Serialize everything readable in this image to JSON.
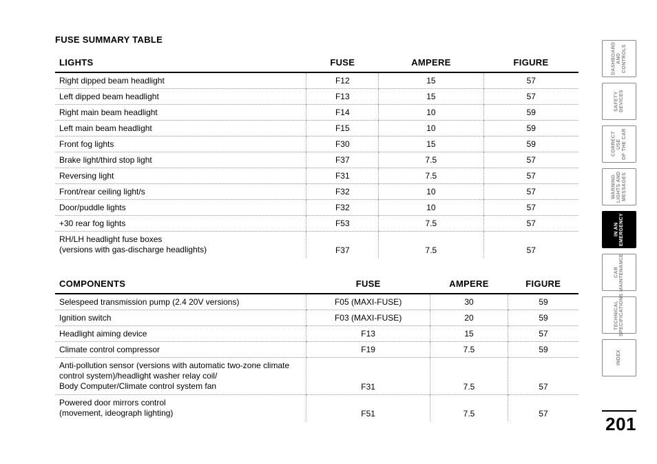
{
  "pageNumber": "201",
  "sectionTitle": "FUSE SUMMARY TABLE",
  "tables": [
    {
      "headers": [
        "LIGHTS",
        "FUSE",
        "AMPERE",
        "FIGURE"
      ],
      "rows": [
        [
          "Right dipped beam headlight",
          "F12",
          "15",
          "57"
        ],
        [
          "Left dipped beam headlight",
          "F13",
          "15",
          "57"
        ],
        [
          "Right main beam headlight",
          "F14",
          "10",
          "59"
        ],
        [
          "Left main beam headlight",
          "F15",
          "10",
          "59"
        ],
        [
          "Front fog lights",
          "F30",
          "15",
          "59"
        ],
        [
          "Brake light/third stop light",
          "F37",
          "7.5",
          "57"
        ],
        [
          "Reversing light",
          "F31",
          "7.5",
          "57"
        ],
        [
          "Front/rear ceiling light/s",
          "F32",
          "10",
          "57"
        ],
        [
          "Door/puddle lights",
          "F32",
          "10",
          "57"
        ],
        [
          "+30 rear fog lights",
          "F53",
          "7.5",
          "57"
        ],
        [
          "RH/LH headlight fuse boxes\n(versions with gas-discharge headlights)",
          "F37",
          "7.5",
          "57"
        ]
      ]
    },
    {
      "headers": [
        "COMPONENTS",
        "FUSE",
        "AMPERE",
        "FIGURE"
      ],
      "rows": [
        [
          "Selespeed transmission pump (2.4 20V versions)",
          "F05 (MAXI-FUSE)",
          "30",
          "59"
        ],
        [
          "Ignition switch",
          "F03 (MAXI-FUSE)",
          "20",
          "59"
        ],
        [
          "Headlight aiming device",
          "F13",
          "15",
          "57"
        ],
        [
          "Climate control compressor",
          "F19",
          "7.5",
          "59"
        ],
        [
          "Anti-pollution sensor (versions with automatic two-zone climate\ncontrol system)/headlight washer relay coil/\nBody Computer/Climate control system fan",
          "F31",
          "7.5",
          "57"
        ],
        [
          "Powered door mirrors control\n(movement, ideograph lighting)",
          "F51",
          "7.5",
          "57"
        ]
      ]
    }
  ],
  "tabs": [
    {
      "label": "DASHBOARD\nAND CONTROLS",
      "active": false
    },
    {
      "label": "SAFETY\nDEVICES",
      "active": false
    },
    {
      "label": "CORRECT USE\nOF THE CAR",
      "active": false
    },
    {
      "label": "WARNING\nLIGHTS AND\nMESSAGES",
      "active": false
    },
    {
      "label": "IN AN\nEMERGENCY",
      "active": true
    },
    {
      "label": "CAR\nMAINTENANCE",
      "active": false
    },
    {
      "label": "TECHNICAL\nSPECIFICATIONS",
      "active": false
    },
    {
      "label": "INDEX",
      "active": false
    }
  ]
}
